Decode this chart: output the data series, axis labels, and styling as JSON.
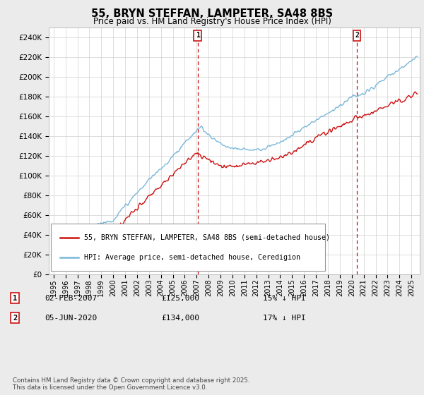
{
  "title": "55, BRYN STEFFAN, LAMPETER, SA48 8BS",
  "subtitle": "Price paid vs. HM Land Registry's House Price Index (HPI)",
  "ylabel_ticks": [
    "£0",
    "£20K",
    "£40K",
    "£60K",
    "£80K",
    "£100K",
    "£120K",
    "£140K",
    "£160K",
    "£180K",
    "£200K",
    "£220K",
    "£240K"
  ],
  "ytick_values": [
    0,
    20000,
    40000,
    60000,
    80000,
    100000,
    120000,
    140000,
    160000,
    180000,
    200000,
    220000,
    240000
  ],
  "ylim": [
    0,
    250000
  ],
  "hpi_color": "#7ab8d9",
  "price_color": "#cc1111",
  "marker1_year": 2007.09,
  "marker2_year": 2020.43,
  "marker1_date": "02-FEB-2007",
  "marker1_price": "£125,000",
  "marker1_hpi": "15% ↓ HPI",
  "marker2_date": "05-JUN-2020",
  "marker2_price": "£134,000",
  "marker2_hpi": "17% ↓ HPI",
  "legend_label1": "55, BRYN STEFFAN, LAMPETER, SA48 8BS (semi-detached house)",
  "legend_label2": "HPI: Average price, semi-detached house, Ceredigion",
  "footer": "Contains HM Land Registry data © Crown copyright and database right 2025.\nThis data is licensed under the Open Government Licence v3.0.",
  "background_color": "#ebebeb",
  "plot_bg_color": "#ffffff",
  "xlim_left": 1994.6,
  "xlim_right": 2025.7
}
